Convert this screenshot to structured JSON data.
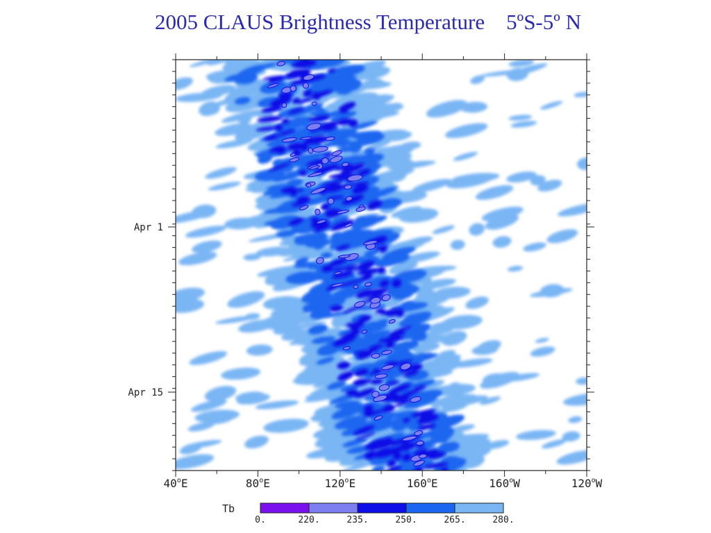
{
  "page_title": "2005 CLAUS Brightness Temperature    5ºS-5º N",
  "chart_data": {
    "type": "heatmap",
    "title": "2005 CLAUS Brightness Temperature    5ºS-5º N",
    "x_axis": {
      "ticks": [
        {
          "lon": 40,
          "label": "40",
          "dir": "E"
        },
        {
          "lon": 80,
          "label": "80",
          "dir": "E"
        },
        {
          "lon": 120,
          "label": "120",
          "dir": "E"
        },
        {
          "lon": 160,
          "label": "160",
          "dir": "E"
        },
        {
          "lon": 200,
          "label": "160",
          "dir": "W"
        },
        {
          "lon": 240,
          "label": "120",
          "dir": "W"
        }
      ],
      "range": [
        40,
        240
      ]
    },
    "y_axis": {
      "ticks": [
        {
          "label": "Apr 1"
        },
        {
          "label": "Apr 15"
        }
      ]
    },
    "legend": {
      "label": "Tb",
      "levels": [
        "0.",
        "220.",
        "235.",
        "250.",
        "265.",
        "280."
      ],
      "colors": [
        "#7a10ee",
        "#7d7ff0",
        "#0e0ee6",
        "#1a66f0",
        "#7ab6f4"
      ]
    }
  }
}
